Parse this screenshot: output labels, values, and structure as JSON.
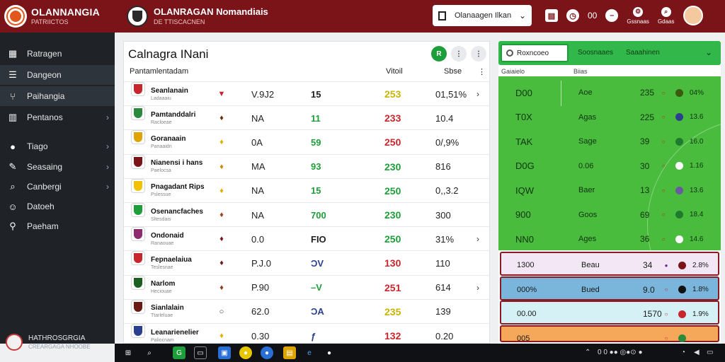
{
  "header": {
    "app_title": "OLANNANGIA",
    "app_subtitle": "PATRIICTOS",
    "page_title": "OLANRAGAN Nomandiais",
    "page_subtitle": "DE TTISCACNEN",
    "select_value": "Olanaagen Ilkan",
    "icons": [
      "flag-icon",
      "clock-icon",
      "minus-icon",
      "gear-icon",
      "search-icon"
    ],
    "counter_text": "00",
    "action1_label": "Gssnaas",
    "action2_label": "Gdaas"
  },
  "sidebar": {
    "items": [
      {
        "label": "Ratragen",
        "icon": "grid-icon",
        "active": false,
        "chevron": false
      },
      {
        "label": "Dangeon",
        "icon": "list-icon",
        "active": true,
        "chevron": false
      },
      {
        "label": "Paihangia",
        "icon": "branch-icon",
        "active": true,
        "chevron": false
      },
      {
        "label": "Pentanos",
        "icon": "table-icon",
        "active": false,
        "chevron": true
      },
      {
        "label": "Tiago",
        "icon": "ball-icon",
        "active": false,
        "chevron": true
      },
      {
        "label": "Seasaing",
        "icon": "pen-icon",
        "active": false,
        "chevron": true
      },
      {
        "label": "Canbergi",
        "icon": "search-icon",
        "active": false,
        "chevron": true
      },
      {
        "label": "Datoeh",
        "icon": "face-icon",
        "active": false,
        "chevron": false
      },
      {
        "label": "Paeham",
        "icon": "pin-icon",
        "active": false,
        "chevron": false
      }
    ],
    "user_name": "HATHROSGRGIA",
    "user_sub": "CREARGAGA NHOOBE"
  },
  "main": {
    "title": "Calnagra INani",
    "columns": {
      "team": "Pantamlentadam",
      "c1": "Vitoil",
      "c2": "Sbse"
    },
    "rows": [
      {
        "team": "Seanlanain",
        "sub": "Ladaaaiu",
        "flag": "#c8262c",
        "tag": "▼",
        "tag_color": "#c8262c",
        "v1": "V.9J2",
        "v2": "15",
        "v2_color": "#1f1f1f",
        "v3": "253",
        "v3_color": "#c9b400",
        "v4": "01,51%",
        "arrow": "›"
      },
      {
        "team": "Pamtanddalri",
        "sub": "Racloeae",
        "flag": "#2b8a3e",
        "tag": "♦",
        "tag_color": "#6b2a0c",
        "v1": "NA",
        "v2": "11",
        "v2_color": "#1e9e3a",
        "v3": "233",
        "v3_color": "#c8262c",
        "v4": "10.4",
        "arrow": ""
      },
      {
        "team": "Goranaain",
        "sub": "Panaaidn",
        "flag": "#e0a400",
        "tag": "♦",
        "tag_color": "#e0b000",
        "v1": "0A",
        "v2": "59",
        "v2_color": "#1e9e3a",
        "v3": "250",
        "v3_color": "#c8262c",
        "v4": "0/,9%",
        "arrow": ""
      },
      {
        "team": "Nianensi i hans",
        "sub": "Paelocsa",
        "flag": "#7a1419",
        "tag": "♦",
        "tag_color": "#d08a00",
        "v1": "MA",
        "v2": "93",
        "v2_color": "#1e9e3a",
        "v3": "230",
        "v3_color": "#1e9e3a",
        "v4": "816",
        "arrow": ""
      },
      {
        "team": "Pnagadant Rips",
        "sub": "Pslessue",
        "flag": "#f2c200",
        "tag": "♦",
        "tag_color": "#e0b000",
        "v1": "NA",
        "v2": "15",
        "v2_color": "#1e9e3a",
        "v3": "250",
        "v3_color": "#1e9e3a",
        "v4": "0,,3.2",
        "arrow": ""
      },
      {
        "team": "Osenancfaches",
        "sub": "Sltesdais",
        "flag": "#1e9e3a",
        "tag": "♦",
        "tag_color": "#a0401a",
        "v1": "NA",
        "v2": "700",
        "v2_color": "#1e9e3a",
        "v3": "230",
        "v3_color": "#1e9e3a",
        "v4": "300",
        "arrow": ""
      },
      {
        "team": "Ondonaid",
        "sub": "Ranaouae",
        "flag": "#8e2b6e",
        "tag": "♦",
        "tag_color": "#7a1419",
        "v1": "0.0",
        "v2": "FIO",
        "v2_color": "#1f1f1f",
        "v3": "250",
        "v3_color": "#1e9e3a",
        "v4": "31%",
        "arrow": "›"
      },
      {
        "team": "Fepnaelaiua",
        "sub": "Teslesnae",
        "flag": "#c8262c",
        "tag": "♦",
        "tag_color": "#6b1a14",
        "v1": "P.J.0",
        "v2": "ƆV",
        "v2_color": "#2a3f8f",
        "v3": "130",
        "v3_color": "#c8262c",
        "v4": "110",
        "arrow": ""
      },
      {
        "team": "Narlom",
        "sub": "Heciouae",
        "flag": "#1b5e20",
        "tag": "♦",
        "tag_color": "#8e3a1a",
        "v1": "P.90",
        "v2": "–V",
        "v2_color": "#1e9e3a",
        "v3": "251",
        "v3_color": "#c8262c",
        "v4": "614",
        "arrow": "›"
      },
      {
        "team": "Sianlalain",
        "sub": "Ttarleluae",
        "flag": "#6b1a14",
        "tag": "○",
        "tag_color": "#333333",
        "v1": "62.0",
        "v2": "ƆA",
        "v2_color": "#2a3f8f",
        "v3": "235",
        "v3_color": "#c9b400",
        "v4": "139",
        "arrow": ""
      },
      {
        "team": "Leanarienelier",
        "sub": "Paliocnam",
        "flag": "#2a3f8f",
        "tag": "♦",
        "tag_color": "#e0b000",
        "v1": "0.30",
        "v2": "ƒ",
        "v2_color": "#2a3f8f",
        "v3": "132",
        "v3_color": "#c8262c",
        "v4": "0.20",
        "arrow": ""
      }
    ]
  },
  "right": {
    "search_text": "Roxncoeo",
    "tab1": "Soosnaaes",
    "tab2": "Saaahinen",
    "col1": "Gaiaielo",
    "col2": "Biias",
    "green_rows": [
      {
        "a": "D00",
        "b": "Aoe",
        "c": "235",
        "d": "○",
        "e": "#3a5a10",
        "f": "04%"
      },
      {
        "a": "T0X",
        "b": "Agas",
        "c": "225",
        "d": "○",
        "e": "#2a3f8f",
        "f": "13.6"
      },
      {
        "a": "TAK",
        "b": "Sage",
        "c": "39",
        "d": "○",
        "e": "#1e7a2e",
        "f": "16.0"
      },
      {
        "a": "D0G",
        "b": "0.06",
        "c": "30",
        "d": "○",
        "e": "#ffffff",
        "f": "1.16"
      },
      {
        "a": "IQW",
        "b": "Baer",
        "c": "13",
        "d": "○",
        "e": "#6a5aa0",
        "f": "13.6"
      },
      {
        "a": "900",
        "b": "Goos",
        "c": "69",
        "d": "○",
        "e": "#1e7a2e",
        "f": "18.4"
      },
      {
        "a": "NN0",
        "b": "Ages",
        "c": "36",
        "d": "○",
        "e": "#ffffff",
        "f": "14.6"
      }
    ],
    "colored_rows": [
      {
        "a": "1300",
        "b": "Beau",
        "c": "34",
        "d": "●",
        "e": "#7a1419",
        "f": "2.8%",
        "bg": "#f3e6f5",
        "d_color": "#6a2a8a"
      },
      {
        "a": "000%",
        "b": "Bued",
        "c": "9.0",
        "d": "○",
        "e": "#111111",
        "f": "1.8%",
        "bg": "#7ab6dc",
        "d_color": "#b3261e"
      },
      {
        "a": "00.00",
        "b": "",
        "c": "1570",
        "d": "○",
        "e": "#c8262c",
        "f": "1.9%",
        "bg": "#d5f1f5",
        "d_color": "#b3261e"
      },
      {
        "a": "005",
        "b": "",
        "c": "",
        "d": "○",
        "e": "#2b8a3e",
        "f": "",
        "bg": "#f5a85a",
        "d_color": "#b3261e"
      }
    ]
  },
  "taskbar": {
    "apps": [
      "windows-icon",
      "search-icon",
      "store-icon",
      "terminal-icon",
      "browser-icon",
      "chrome-icon",
      "edge-icon",
      "files-icon",
      "edge2-icon",
      "steam-icon"
    ],
    "tray_text": "0 0 ●● ◎●⊙ ●",
    "tray_icons": [
      "chevron-up-icon",
      "network-icon",
      "volume-icon",
      "battery-icon"
    ]
  }
}
